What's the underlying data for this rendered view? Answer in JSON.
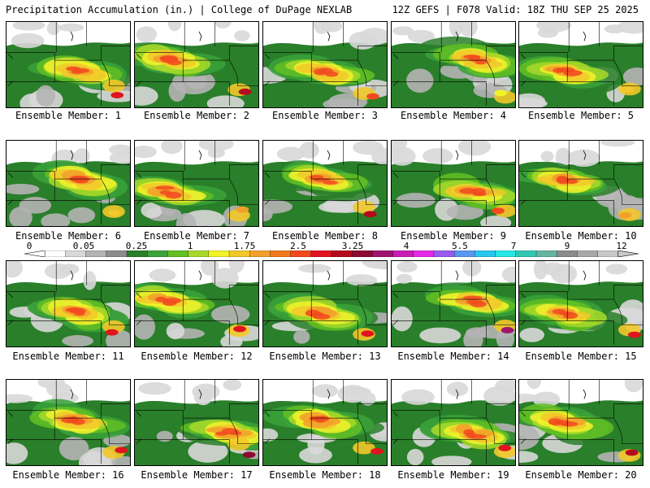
{
  "header": {
    "title_left": "Precipitation Accumulation (in.) | College of DuPage NEXLAB",
    "title_right": "12Z GEFS | F078 Valid: 18Z THU SEP 25 2025"
  },
  "colorbar": {
    "labels": [
      "0",
      "0.05",
      "0.25",
      "1",
      "1.75",
      "2.5",
      "3.25",
      "4",
      "5.5",
      "7",
      "9",
      "12"
    ],
    "colors": [
      "#ffffff",
      "#d8d8d8",
      "#b4b4b4",
      "#8c8c8c",
      "#2a7f2a",
      "#3aa23a",
      "#62c022",
      "#a8d82a",
      "#f2f22a",
      "#f2c82a",
      "#f2a02a",
      "#f27a1e",
      "#f24a1e",
      "#e0141e",
      "#b40a1e",
      "#8c0a32",
      "#a0146e",
      "#c81eb4",
      "#e628e6",
      "#9a5af0",
      "#5a96f0",
      "#28c8f0",
      "#28e6e6",
      "#30c8b4",
      "#64b4a0",
      "#8c8c8c",
      "#a8a8a8",
      "#c8c8c8"
    ]
  },
  "members": [
    {
      "label": "Ensemble Member: 1",
      "max_color": "#e0141e"
    },
    {
      "label": "Ensemble Member: 2",
      "max_color": "#b40a1e"
    },
    {
      "label": "Ensemble Member: 3",
      "max_color": "#f24a1e"
    },
    {
      "label": "Ensemble Member: 4",
      "max_color": "#f2f22a"
    },
    {
      "label": "Ensemble Member: 5",
      "max_color": "#f2c82a"
    },
    {
      "label": "Ensemble Member: 6",
      "max_color": "#f2c82a"
    },
    {
      "label": "Ensemble Member: 7",
      "max_color": "#f2a02a"
    },
    {
      "label": "Ensemble Member: 8",
      "max_color": "#b40a1e"
    },
    {
      "label": "Ensemble Member: 9",
      "max_color": "#f24a1e"
    },
    {
      "label": "Ensemble Member: 10",
      "max_color": "#f2a02a"
    },
    {
      "label": "Ensemble Member: 11",
      "max_color": "#e0141e"
    },
    {
      "label": "Ensemble Member: 12",
      "max_color": "#e0141e"
    },
    {
      "label": "Ensemble Member: 13",
      "max_color": "#e0141e"
    },
    {
      "label": "Ensemble Member: 14",
      "max_color": "#a0146e"
    },
    {
      "label": "Ensemble Member: 15",
      "max_color": "#e0141e"
    },
    {
      "label": "Ensemble Member: 16",
      "max_color": "#e0141e"
    },
    {
      "label": "Ensemble Member: 17",
      "max_color": "#8c0a32"
    },
    {
      "label": "Ensemble Member: 18",
      "max_color": "#e0141e"
    },
    {
      "label": "Ensemble Member: 19",
      "max_color": "#e0141e"
    },
    {
      "label": "Ensemble Member: 20",
      "max_color": "#b40a1e"
    }
  ]
}
